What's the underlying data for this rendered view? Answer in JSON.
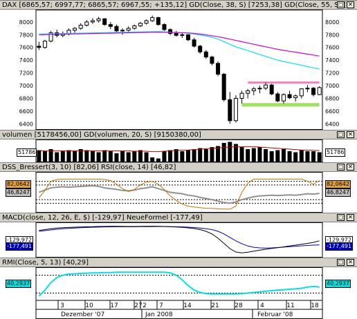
{
  "panels": {
    "dax": {
      "title": "DAX [6865,57; 6997,77; 6865,57; 6967,55; +135,12]   GD(Close, 38, S) [7253,38]   GD(Close, 55, S) [7"
    },
    "volume": {
      "title": "volumen [5178456,00]   GD(volumen, 20, S) [9150380,00]",
      "badge_left": "51786",
      "badge_right": "51786"
    },
    "dss": {
      "title": "DSS_Bressert(3, 10) [82,06]   RSI(close, 14) [46,82]",
      "badge_dss": "82,0642",
      "badge_rsi": "46,8247"
    },
    "macd": {
      "title": "MACD(close, 12, 26, E, $) [-129,97]   NeueFormel [-177,49]",
      "badge_macd": "-129,972",
      "badge_signal": "-177,491"
    },
    "rmi": {
      "title": "RMI(Close, 5, 13) [40,29]",
      "badge_rmi": "40,2937"
    }
  },
  "window_buttons": [
    "□",
    "✕"
  ],
  "colors": {
    "candle_up": "#ffffff",
    "candle_down": "#000000",
    "ma38": "#00e0ff",
    "ma55": "#d000d0",
    "resistance": "#ff80c0",
    "support": "#a0e060",
    "volume_bar": "#000000",
    "volume_ma": "#c00000",
    "dss": "#c87000",
    "rsi": "#909090",
    "macd": "#000000",
    "signal": "#0000c0",
    "rmi": "#00e0e0"
  },
  "x_axis": {
    "day_labels": [
      "3",
      "10",
      "17",
      "27",
      "2",
      "7",
      "14",
      "21",
      "28",
      "4",
      "11",
      "18"
    ],
    "month_labels": [
      "Dezember '07",
      "Jan 2008",
      "Februar '08"
    ]
  },
  "chart_data": [
    {
      "type": "candlestick",
      "title": "DAX",
      "ylim": [
        6350,
        8150
      ],
      "yticks": [
        6400,
        6600,
        6800,
        7000,
        7200,
        7400,
        7600,
        7800,
        8000
      ],
      "candles": [
        [
          7620,
          7690,
          7560,
          7600
        ],
        [
          7600,
          7720,
          7580,
          7700
        ],
        [
          7700,
          7860,
          7680,
          7830
        ],
        [
          7830,
          7880,
          7760,
          7790
        ],
        [
          7790,
          7850,
          7760,
          7820
        ],
        [
          7820,
          7900,
          7790,
          7870
        ],
        [
          7870,
          7920,
          7830,
          7900
        ],
        [
          7900,
          7980,
          7880,
          7950
        ],
        [
          7950,
          8030,
          7930,
          8000
        ],
        [
          8000,
          8060,
          7970,
          8020
        ],
        [
          8020,
          8080,
          7990,
          8050
        ],
        [
          8050,
          8060,
          7940,
          7960
        ],
        [
          7960,
          8000,
          7890,
          7930
        ],
        [
          7930,
          7960,
          7840,
          7860
        ],
        [
          7860,
          7900,
          7800,
          7870
        ],
        [
          7870,
          7930,
          7850,
          7900
        ],
        [
          7900,
          7960,
          7880,
          7940
        ],
        [
          7940,
          8000,
          7920,
          7980
        ],
        [
          7980,
          8040,
          7960,
          8020
        ],
        [
          8020,
          8100,
          8000,
          8070
        ],
        [
          8070,
          8080,
          7940,
          7960
        ],
        [
          7960,
          7980,
          7860,
          7880
        ],
        [
          7880,
          7900,
          7790,
          7820
        ],
        [
          7820,
          7860,
          7770,
          7790
        ],
        [
          7790,
          7830,
          7750,
          7800
        ],
        [
          7800,
          7810,
          7700,
          7720
        ],
        [
          7720,
          7750,
          7600,
          7620
        ],
        [
          7620,
          7640,
          7500,
          7530
        ],
        [
          7530,
          7560,
          7420,
          7450
        ],
        [
          7450,
          7470,
          7320,
          7350
        ],
        [
          7350,
          7380,
          7150,
          7180
        ],
        [
          7180,
          7200,
          6750,
          6780
        ],
        [
          6780,
          6900,
          6400,
          6450
        ],
        [
          6450,
          6850,
          6420,
          6800
        ],
        [
          6800,
          6920,
          6720,
          6880
        ],
        [
          6880,
          6950,
          6800,
          6920
        ],
        [
          6920,
          6980,
          6850,
          6950
        ],
        [
          6950,
          7000,
          6880,
          6960
        ],
        [
          6960,
          7050,
          6930,
          7010
        ],
        [
          7010,
          7030,
          6850,
          6870
        ],
        [
          6870,
          6900,
          6740,
          6760
        ],
        [
          6760,
          6880,
          6720,
          6860
        ],
        [
          6860,
          6920,
          6790,
          6810
        ],
        [
          6810,
          6860,
          6750,
          6840
        ],
        [
          6840,
          6960,
          6800,
          6950
        ],
        [
          6950,
          7010,
          6900,
          6960
        ],
        [
          6960,
          6980,
          6830,
          6860
        ],
        [
          6860,
          6990,
          6850,
          6970
        ]
      ],
      "ma38": [
        7810,
        7812,
        7814,
        7816,
        7818,
        7820,
        7822,
        7824,
        7826,
        7828,
        7830,
        7832,
        7834,
        7836,
        7838,
        7840,
        7842,
        7844,
        7846,
        7848,
        7850,
        7845,
        7840,
        7835,
        7830,
        7825,
        7810,
        7795,
        7780,
        7760,
        7730,
        7690,
        7650,
        7610,
        7580,
        7550,
        7520,
        7490,
        7460,
        7430,
        7400,
        7380,
        7360,
        7340,
        7320,
        7300,
        7280,
        7260
      ],
      "ma55": [
        7800,
        7802,
        7804,
        7806,
        7808,
        7810,
        7812,
        7814,
        7816,
        7818,
        7820,
        7822,
        7824,
        7826,
        7828,
        7830,
        7832,
        7834,
        7836,
        7838,
        7840,
        7838,
        7836,
        7834,
        7832,
        7828,
        7820,
        7810,
        7798,
        7784,
        7768,
        7750,
        7730,
        7710,
        7690,
        7670,
        7650,
        7630,
        7610,
        7590,
        7570,
        7555,
        7540,
        7525,
        7510,
        7495,
        7480,
        7465
      ],
      "resistance": {
        "value": 7050,
        "from": 35,
        "to": 47
      },
      "support": {
        "value": 6700,
        "from": 34,
        "to": 47
      }
    },
    {
      "type": "bar",
      "title": "volumen",
      "values": [
        0.55,
        0.5,
        0.6,
        0.45,
        0.5,
        0.55,
        0.5,
        0.6,
        0.55,
        0.5,
        0.45,
        0.55,
        0.5,
        0.4,
        0.5,
        0.45,
        0.5,
        0.55,
        0.45,
        0.2,
        0.15,
        0.5,
        0.55,
        0.6,
        0.5,
        0.55,
        0.6,
        0.65,
        0.6,
        0.7,
        0.75,
        0.9,
        0.95,
        0.85,
        0.7,
        0.6,
        0.65,
        0.7,
        0.6,
        0.5,
        0.55,
        0.6,
        0.5,
        0.45,
        0.55,
        0.5,
        0.5,
        0.45
      ],
      "ma": [
        0.52,
        0.52,
        0.52,
        0.52,
        0.52,
        0.52,
        0.52,
        0.52,
        0.52,
        0.52,
        0.52,
        0.52,
        0.52,
        0.52,
        0.52,
        0.52,
        0.5,
        0.5,
        0.5,
        0.48,
        0.48,
        0.5,
        0.52,
        0.54,
        0.55,
        0.56,
        0.58,
        0.6,
        0.62,
        0.64,
        0.66,
        0.68,
        0.7,
        0.72,
        0.72,
        0.72,
        0.72,
        0.7,
        0.68,
        0.66,
        0.64,
        0.62,
        0.6,
        0.58,
        0.56,
        0.55,
        0.54,
        0.53
      ],
      "ylim": [
        0,
        1
      ]
    },
    {
      "type": "line",
      "title": "DSS / RSI",
      "ylim": [
        0,
        100
      ],
      "levels": [
        80,
        70,
        30,
        20
      ],
      "dss": [
        35,
        55,
        80,
        85,
        86,
        86,
        86,
        86,
        86,
        86,
        86,
        85,
        82,
        72,
        60,
        52,
        58,
        70,
        78,
        80,
        72,
        58,
        40,
        28,
        18,
        12,
        10,
        8,
        6,
        6,
        5,
        4,
        4,
        12,
        50,
        75,
        86,
        86,
        86,
        86,
        86,
        86,
        86,
        86,
        86,
        80,
        72,
        82
      ],
      "rsi": [
        50,
        56,
        62,
        64,
        65,
        64,
        65,
        66,
        67,
        68,
        66,
        62,
        60,
        58,
        55,
        54,
        56,
        60,
        62,
        65,
        60,
        55,
        50,
        48,
        46,
        42,
        40,
        36,
        33,
        30,
        26,
        22,
        20,
        24,
        30,
        34,
        38,
        40,
        41,
        42,
        41,
        42,
        43,
        42,
        44,
        46,
        45,
        47
      ]
    },
    {
      "type": "line",
      "title": "MACD",
      "ylim": [
        -300,
        60
      ],
      "macd": [
        -10,
        0,
        10,
        18,
        22,
        25,
        28,
        30,
        32,
        34,
        36,
        37,
        38,
        38,
        37,
        36,
        36,
        37,
        38,
        39,
        38,
        36,
        33,
        30,
        26,
        20,
        12,
        0,
        -20,
        -50,
        -100,
        -160,
        -220,
        -260,
        -270,
        -262,
        -250,
        -238,
        -228,
        -218,
        -210,
        -200,
        -190,
        -180,
        -170,
        -160,
        -148,
        -130
      ],
      "signal": [
        -20,
        -12,
        -4,
        4,
        10,
        14,
        18,
        22,
        25,
        27,
        29,
        31,
        32,
        33,
        33,
        33,
        33,
        34,
        34,
        35,
        35,
        35,
        34,
        33,
        31,
        28,
        24,
        18,
        10,
        0,
        -20,
        -50,
        -90,
        -130,
        -165,
        -190,
        -205,
        -212,
        -214,
        -212,
        -208,
        -203,
        -198,
        -193,
        -188,
        -184,
        -180,
        -177
      ]
    },
    {
      "type": "line",
      "title": "RMI",
      "ylim": [
        0,
        100
      ],
      "levels": [
        80,
        20
      ],
      "rmi": [
        10,
        30,
        55,
        72,
        80,
        84,
        85,
        86,
        87,
        88,
        88,
        89,
        89,
        90,
        90,
        90,
        90,
        90,
        90,
        90,
        90,
        90,
        88,
        80,
        65,
        45,
        30,
        22,
        18,
        17,
        17,
        17,
        17,
        17,
        18,
        20,
        22,
        24,
        26,
        28,
        30,
        31,
        33,
        34,
        36,
        40,
        42,
        40
      ]
    }
  ]
}
